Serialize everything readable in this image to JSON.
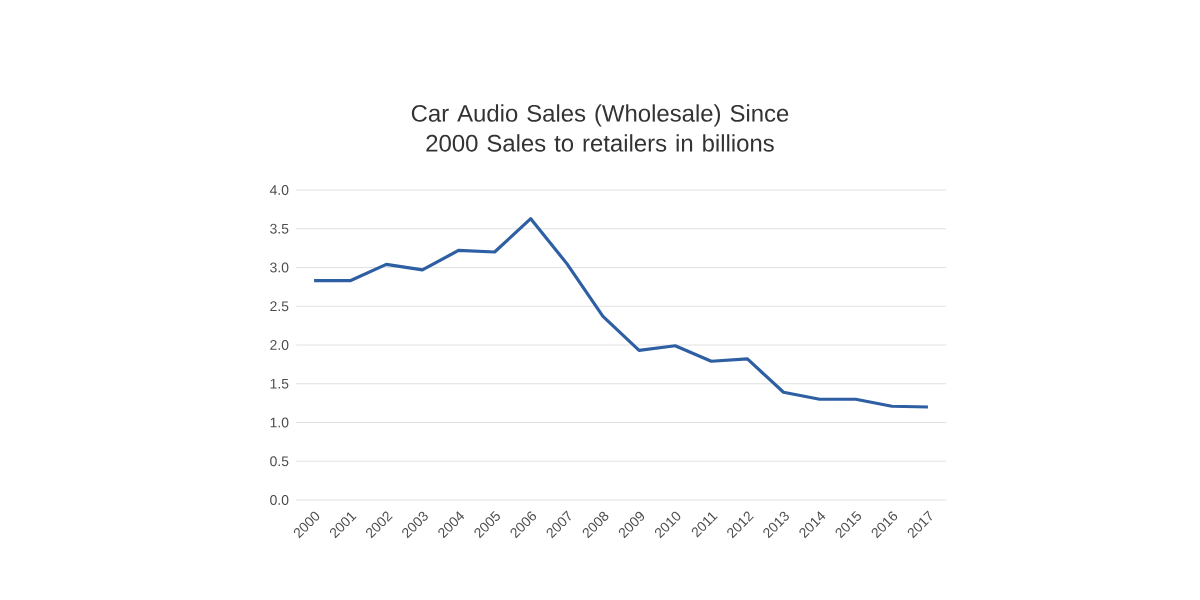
{
  "chart_data": {
    "type": "line",
    "title": "Car Audio Sales (Wholesale) Since 2000 Sales to retailers in billions",
    "categories": [
      "2000",
      "2001",
      "2002",
      "2003",
      "2004",
      "2005",
      "2006",
      "2007",
      "2008",
      "2009",
      "2010",
      "2011",
      "2012",
      "2013",
      "2014",
      "2015",
      "2016",
      "2017"
    ],
    "series": [
      {
        "color": "#2e5fa3",
        "values": [
          2.83,
          2.83,
          3.04,
          2.97,
          3.22,
          3.2,
          3.63,
          3.05,
          2.37,
          1.93,
          1.99,
          1.79,
          1.82,
          1.39,
          1.3,
          1.3,
          1.21,
          1.2
        ]
      }
    ],
    "ylim": [
      0,
      4
    ],
    "yticks": [
      {
        "value": 0,
        "label": "0.0"
      },
      {
        "value": 0.5,
        "label": "0.5"
      },
      {
        "value": 1,
        "label": "1.0"
      },
      {
        "value": 1.5,
        "label": "1.5"
      },
      {
        "value": 2,
        "label": "2.0"
      },
      {
        "value": 2.5,
        "label": "2.5"
      },
      {
        "value": 3,
        "label": "3.0"
      },
      {
        "value": 3.5,
        "label": "3.5"
      },
      {
        "value": 4,
        "label": "4.0"
      }
    ],
    "grid": "y",
    "marker": "none",
    "line_style": "solid"
  }
}
